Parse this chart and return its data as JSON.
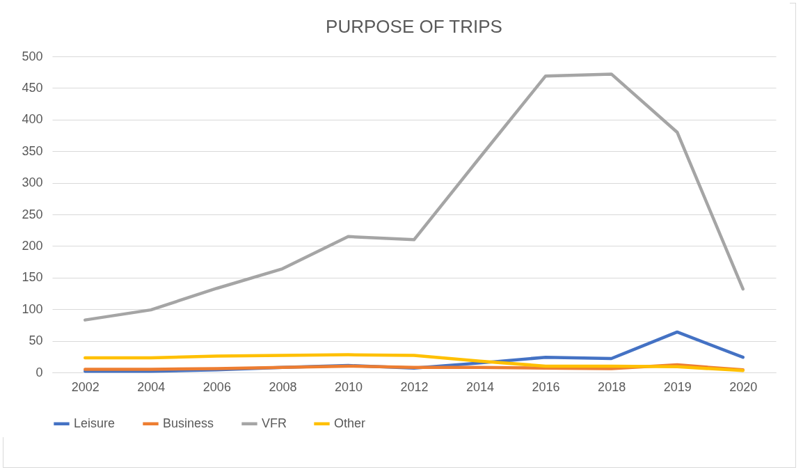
{
  "chart_data": {
    "type": "line",
    "title": "PURPOSE OF TRIPS",
    "categories": [
      "2002",
      "2004",
      "2006",
      "2008",
      "2010",
      "2012",
      "2014",
      "2016",
      "2018",
      "2019",
      "2020"
    ],
    "series": [
      {
        "name": "Leisure",
        "color": "#4472c4",
        "values": [
          2,
          2,
          4,
          8,
          11,
          7,
          15,
          24,
          22,
          64,
          24
        ]
      },
      {
        "name": "Business",
        "color": "#ed7d31",
        "values": [
          5,
          5,
          6,
          8,
          10,
          8,
          8,
          7,
          6,
          12,
          4
        ]
      },
      {
        "name": "VFR",
        "color": "#a5a5a5",
        "values": [
          83,
          99,
          133,
          164,
          215,
          210,
          340,
          469,
          472,
          380,
          132
        ]
      },
      {
        "name": "Other",
        "color": "#ffc000",
        "values": [
          23,
          23,
          26,
          27,
          28,
          27,
          18,
          10,
          10,
          9,
          3
        ]
      }
    ],
    "ylim": [
      0,
      500
    ],
    "yticks": [
      0,
      50,
      100,
      150,
      200,
      250,
      300,
      350,
      400,
      450,
      500
    ],
    "grid": "y",
    "legend": "bottom",
    "marker": "none",
    "line_style": "solid"
  }
}
